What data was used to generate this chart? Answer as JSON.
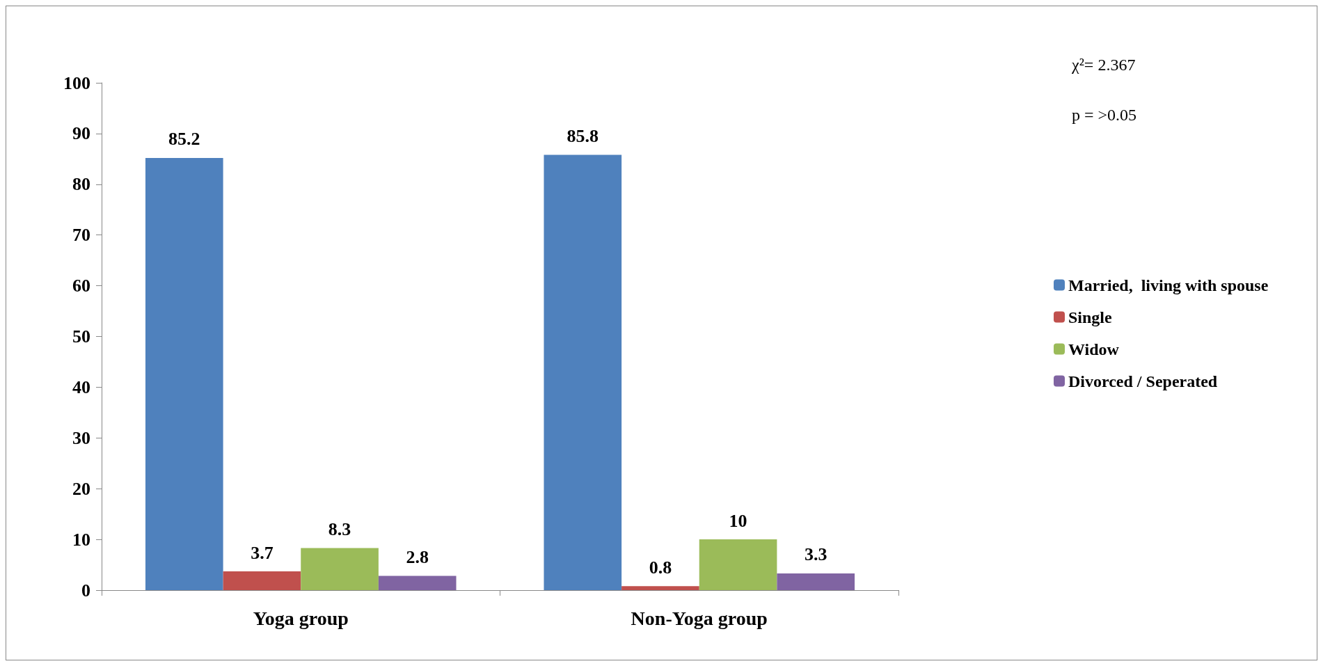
{
  "chart_data": {
    "type": "bar",
    "categories": [
      "Yoga group",
      "Non-Yoga group"
    ],
    "series": [
      {
        "name": "Married,  living with spouse",
        "color": "#4f81bd",
        "values": [
          85.2,
          85.8
        ]
      },
      {
        "name": "Single",
        "color": "#c0504d",
        "values": [
          3.7,
          0.8
        ]
      },
      {
        "name": "Widow",
        "color": "#9bbb59",
        "values": [
          8.3,
          10
        ]
      },
      {
        "name": "Divorced / Seperated",
        "color": "#8064a2",
        "values": [
          2.8,
          3.3
        ]
      }
    ],
    "ylim": [
      0,
      100
    ],
    "yticks": [
      0,
      10,
      20,
      30,
      40,
      50,
      60,
      70,
      80,
      90,
      100
    ],
    "data_labels": true,
    "grid": false,
    "legend": "right",
    "annotations": [
      "χ²= 2.367",
      "p = >0.05"
    ]
  }
}
